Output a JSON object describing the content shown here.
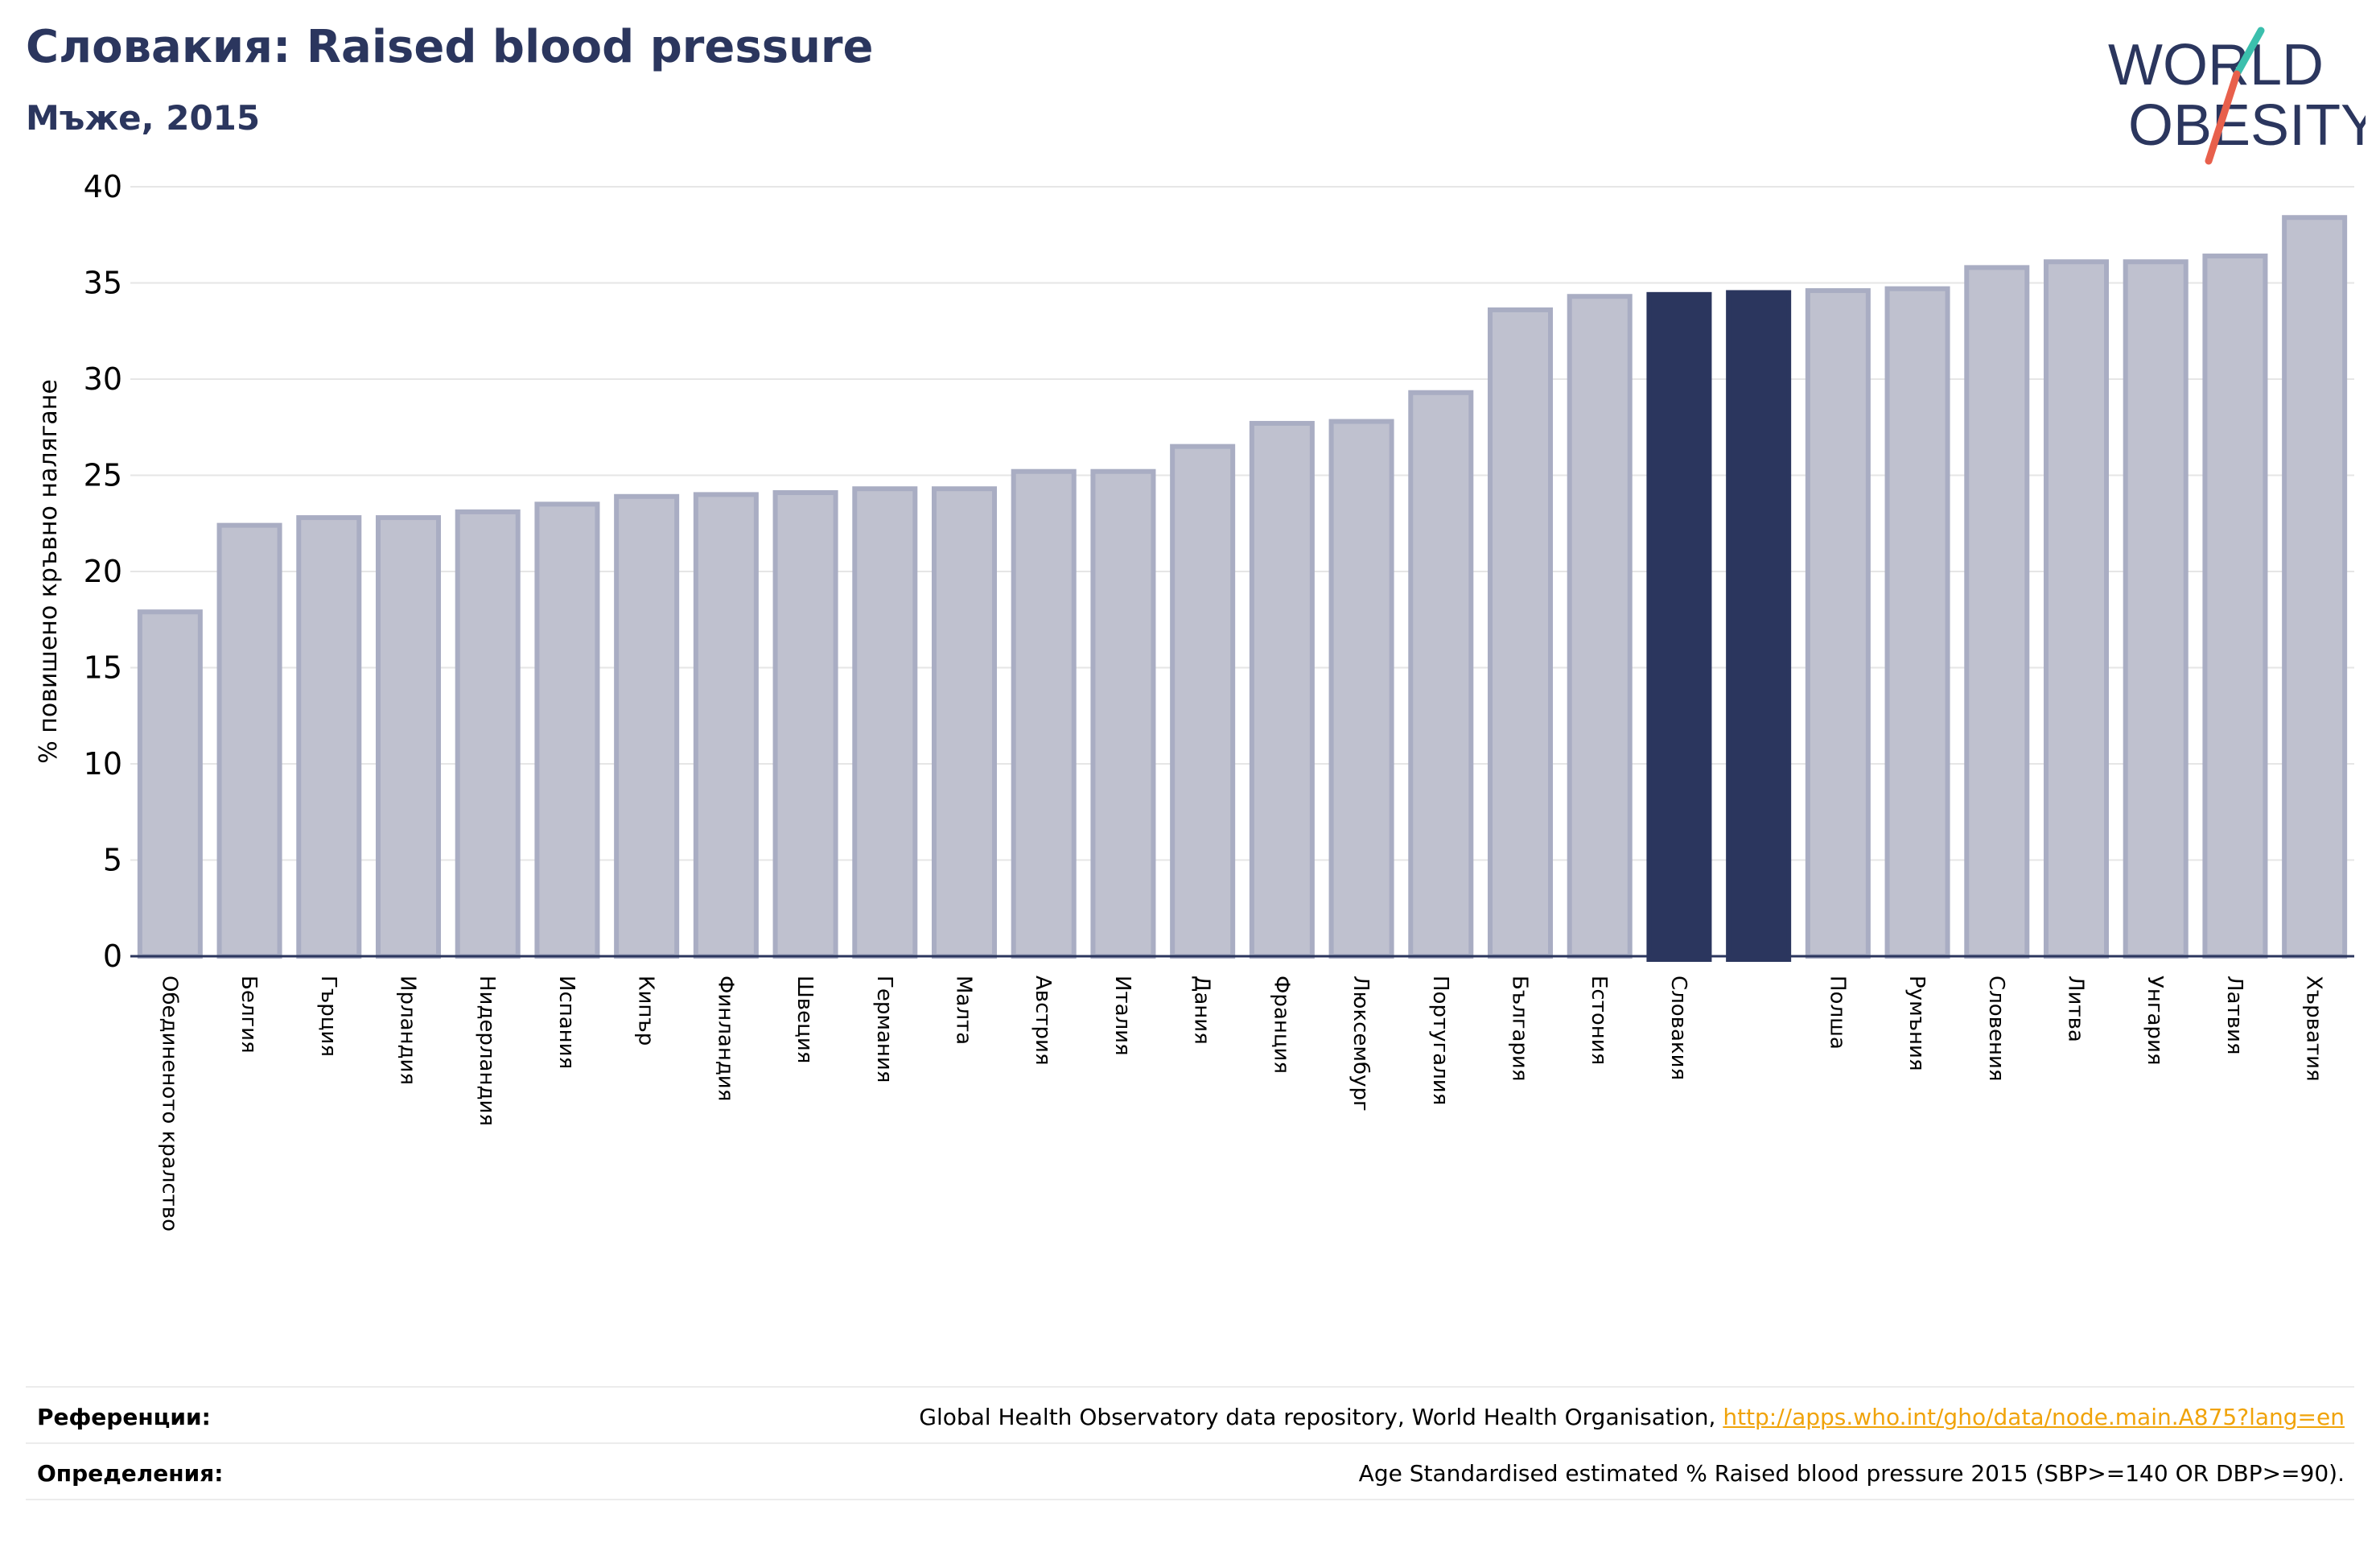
{
  "header": {
    "title": "Словакия: Raised blood pressure",
    "subtitle": "Мъже, 2015"
  },
  "logo": {
    "line1": "WORLD",
    "line2": "OBESITY",
    "accent_teal": "#3bbfad",
    "accent_red": "#e8604c",
    "text_color": "#2b365e"
  },
  "chart_data": {
    "type": "bar",
    "ylabel": "% повишено кръвно налягане",
    "ylim": [
      0,
      40
    ],
    "yticks": [
      0,
      5,
      10,
      15,
      20,
      25,
      30,
      35,
      40
    ],
    "grid": true,
    "categories": [
      "Обединеното кралство",
      "Белгия",
      "Гърция",
      "Ирландия",
      "Нидерландия",
      "Испания",
      "Кипър",
      "Финландия",
      "Швеция",
      "Германия",
      "Малта",
      "Австрия",
      "Италия",
      "Дания",
      "Франция",
      "Люксембург",
      "Португалия",
      "България",
      "Естония",
      "Словакия",
      "",
      "Полша",
      "Румъния",
      "Словения",
      "Литва",
      "Унгария",
      "Латвия",
      "Хърватия"
    ],
    "values": [
      17.9,
      22.4,
      22.8,
      22.8,
      23.1,
      23.5,
      23.9,
      24.0,
      24.1,
      24.3,
      24.3,
      25.2,
      25.2,
      26.5,
      27.7,
      27.8,
      29.3,
      33.6,
      34.3,
      34.4,
      34.5,
      34.6,
      34.7,
      35.8,
      36.1,
      36.1,
      36.4,
      38.4
    ],
    "highlight": [
      19,
      20
    ],
    "bar_color": "#bfc1cf",
    "bar_edge_color": "#a9adc3",
    "highlight_color": "#2b365e"
  },
  "footer": {
    "references_label": "Референции:",
    "references_text": "Global Health Observatory data repository, World Health Organisation, ",
    "references_link": "http://apps.who.int/gho/data/node.main.A875?lang=en",
    "definitions_label": "Определения:",
    "definitions_text": "Age Standardised estimated % Raised blood pressure 2015 (SBP>=140 OR DBP>=90)."
  }
}
